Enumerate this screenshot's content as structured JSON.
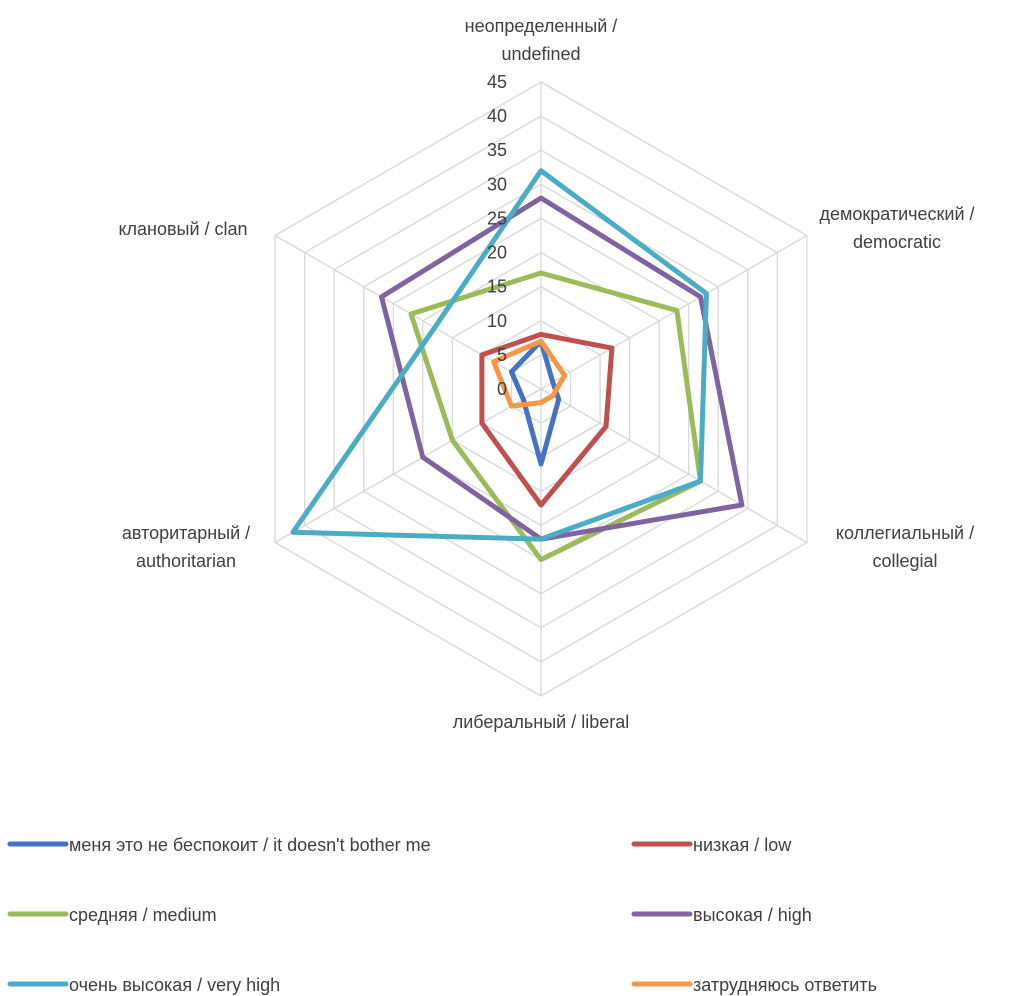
{
  "chart_data": {
    "type": "radar",
    "categories": [
      [
        "неопределенный /",
        "undefined"
      ],
      [
        "демократический /",
        "democratic"
      ],
      [
        "коллегиальный /",
        "collegial"
      ],
      [
        "либеральный / liberal"
      ],
      [
        "авторитарный /",
        "authoritarian"
      ],
      [
        "клановый / clan"
      ]
    ],
    "rlim": [
      0,
      45
    ],
    "ticks": [
      0,
      5,
      10,
      15,
      20,
      25,
      30,
      35,
      40,
      45
    ],
    "grid": true,
    "legend_position": "bottom",
    "series": [
      {
        "name": "меня это не беспокоит / it doesn't bother me",
        "color": "#4472C4",
        "values": [
          7,
          2,
          3,
          11,
          3,
          5
        ]
      },
      {
        "name": "низкая / low",
        "color": "#C0504D",
        "values": [
          8,
          12,
          11,
          17,
          10,
          10
        ]
      },
      {
        "name": "средняя / medium",
        "color": "#9BBB59",
        "values": [
          17,
          23,
          27,
          25,
          15,
          22
        ]
      },
      {
        "name": "высокая / high",
        "color": "#8064A2",
        "values": [
          28,
          27,
          34,
          22,
          20,
          27
        ]
      },
      {
        "name": "очень высокая / very high",
        "color": "#4BACC6",
        "values": [
          32,
          28,
          27,
          22,
          42,
          18
        ]
      },
      {
        "name": "затрудняюсь ответить",
        "color": "#F79646",
        "values": [
          7,
          4,
          2,
          2,
          5,
          8
        ]
      }
    ]
  }
}
